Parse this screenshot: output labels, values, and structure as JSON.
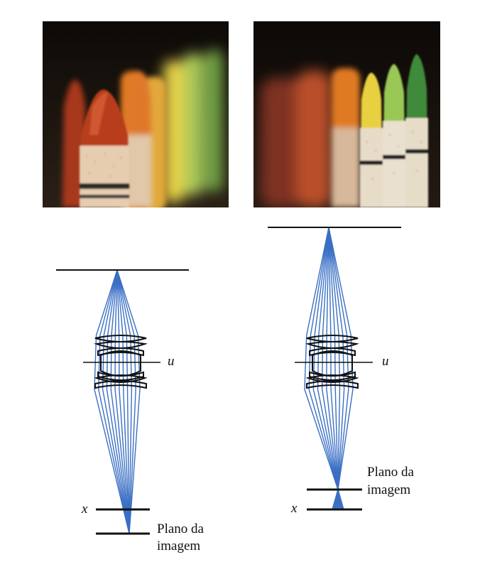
{
  "figure": {
    "left": {
      "photo": {
        "name": "crayons-near-focus",
        "colors": [
          "#b33a1c",
          "#c4481f",
          "#e07a22",
          "#e8c23a",
          "#b7cf5a",
          "#7fae4a"
        ]
      },
      "aperture_label": "u",
      "sensor_label": "x",
      "image_plane_label_line1": "Plano da",
      "image_plane_label_line2": "imagem"
    },
    "right": {
      "photo": {
        "name": "crayons-far-focus",
        "colors": [
          "#8a3520",
          "#c25a2a",
          "#e07a22",
          "#e8d040",
          "#9ac855",
          "#3f8a3a"
        ]
      },
      "aperture_label": "u",
      "sensor_label": "x",
      "image_plane_label_line1": "Plano da",
      "image_plane_label_line2": "imagem"
    },
    "ray_color": "#3a6fc4",
    "line_color": "#111111"
  }
}
